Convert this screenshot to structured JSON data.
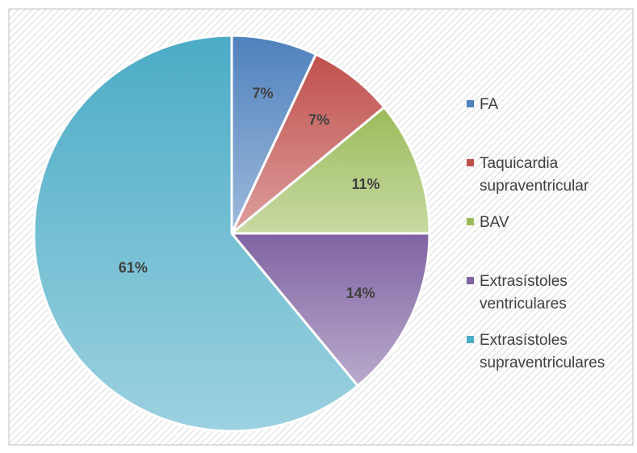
{
  "chart_data": {
    "type": "pie",
    "categories": [
      "FA",
      "Taquicardia supraventricular",
      "BAV",
      "Extrasístoles ventriculares",
      "Extrasístoles supraventriculares"
    ],
    "values": [
      7,
      7,
      11,
      14,
      61
    ],
    "value_labels": [
      "7%",
      "7%",
      "11%",
      "14%",
      "61%"
    ],
    "colors": [
      "#4f81bd",
      "#c0504d",
      "#9bbb59",
      "#8064a2",
      "#4bacc6"
    ],
    "legend": "right"
  }
}
